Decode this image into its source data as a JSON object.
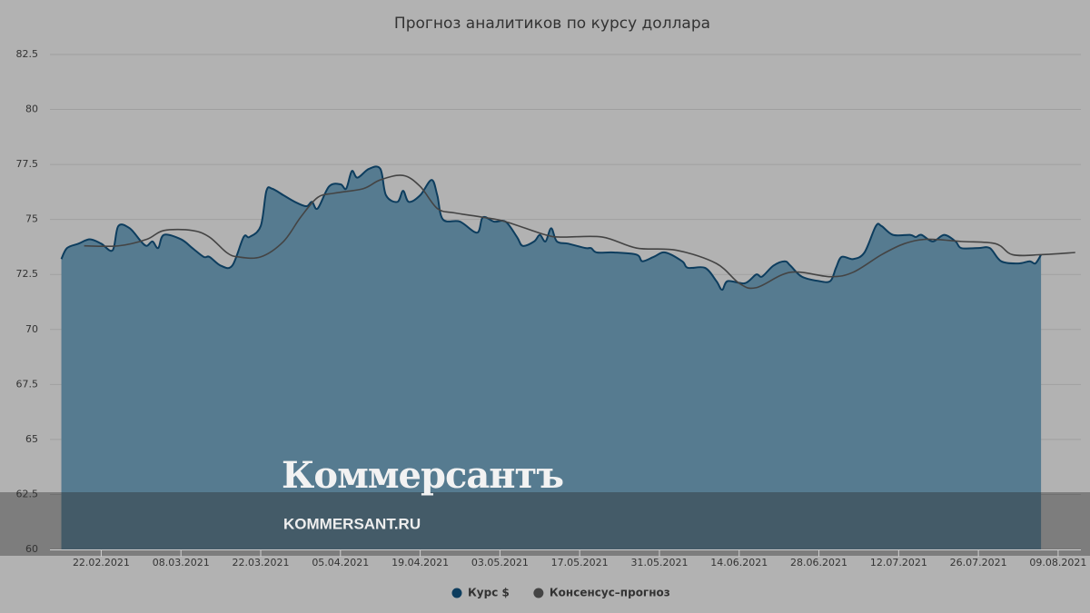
{
  "chart_data": {
    "type": "area-line",
    "title": "Прогноз аналитиков по курсу доллара",
    "xlim": [
      "2021-02-13",
      "2021-08-13"
    ],
    "xticks": [
      {
        "value": "2021-02-22",
        "label": "22.02.2021"
      },
      {
        "value": "2021-03-08",
        "label": "08.03.2021"
      },
      {
        "value": "2021-03-22",
        "label": "22.03.2021"
      },
      {
        "value": "2021-04-05",
        "label": "05.04.2021"
      },
      {
        "value": "2021-04-19",
        "label": "19.04.2021"
      },
      {
        "value": "2021-05-03",
        "label": "03.05.2021"
      },
      {
        "value": "2021-05-17",
        "label": "17.05.2021"
      },
      {
        "value": "2021-05-31",
        "label": "31.05.2021"
      },
      {
        "value": "2021-06-14",
        "label": "14.06.2021"
      },
      {
        "value": "2021-06-28",
        "label": "28.06.2021"
      },
      {
        "value": "2021-07-12",
        "label": "12.07.2021"
      },
      {
        "value": "2021-07-26",
        "label": "26.07.2021"
      },
      {
        "value": "2021-08-09",
        "label": "09.08.2021"
      }
    ],
    "ylim": [
      60,
      82.5
    ],
    "yticks": [
      60,
      62.5,
      65,
      67.5,
      70,
      72.5,
      75,
      77.5,
      80,
      82.5
    ],
    "grid": true,
    "series": [
      {
        "name": "Курс $",
        "kind": "area",
        "color": "#0d3d5e",
        "fill": "#567b90",
        "x": [
          "2021-02-15",
          "2021-02-16",
          "2021-02-18",
          "2021-02-20",
          "2021-02-22",
          "2021-02-24",
          "2021-02-25",
          "2021-02-27",
          "2021-03-01",
          "2021-03-02",
          "2021-03-03",
          "2021-03-04",
          "2021-03-05",
          "2021-03-08",
          "2021-03-10",
          "2021-03-12",
          "2021-03-13",
          "2021-03-15",
          "2021-03-17",
          "2021-03-19",
          "2021-03-20",
          "2021-03-22",
          "2021-03-23",
          "2021-03-24",
          "2021-03-26",
          "2021-03-28",
          "2021-03-30",
          "2021-03-31",
          "2021-04-01",
          "2021-04-03",
          "2021-04-05",
          "2021-04-06",
          "2021-04-07",
          "2021-04-08",
          "2021-04-10",
          "2021-04-12",
          "2021-04-13",
          "2021-04-15",
          "2021-04-16",
          "2021-04-17",
          "2021-04-19",
          "2021-04-21",
          "2021-04-22",
          "2021-04-23",
          "2021-04-26",
          "2021-04-29",
          "2021-04-30",
          "2021-05-02",
          "2021-05-04",
          "2021-05-06",
          "2021-05-07",
          "2021-05-09",
          "2021-05-10",
          "2021-05-11",
          "2021-05-12",
          "2021-05-13",
          "2021-05-15",
          "2021-05-18",
          "2021-05-19",
          "2021-05-20",
          "2021-05-23",
          "2021-05-27",
          "2021-05-28",
          "2021-05-30",
          "2021-06-01",
          "2021-06-04",
          "2021-06-05",
          "2021-06-08",
          "2021-06-10",
          "2021-06-11",
          "2021-06-12",
          "2021-06-15",
          "2021-06-17",
          "2021-06-18",
          "2021-06-20",
          "2021-06-22",
          "2021-06-23",
          "2021-06-25",
          "2021-06-28",
          "2021-06-30",
          "2021-07-01",
          "2021-07-02",
          "2021-07-04",
          "2021-07-06",
          "2021-07-08",
          "2021-07-09",
          "2021-07-11",
          "2021-07-14",
          "2021-07-15",
          "2021-07-16",
          "2021-07-18",
          "2021-07-20",
          "2021-07-22",
          "2021-07-23",
          "2021-07-26",
          "2021-07-28",
          "2021-07-30",
          "2021-08-02",
          "2021-08-04",
          "2021-08-05",
          "2021-08-06"
        ],
        "values": [
          73.2,
          73.7,
          73.9,
          74.1,
          73.9,
          73.6,
          74.7,
          74.6,
          74.0,
          73.8,
          74.0,
          73.7,
          74.3,
          74.1,
          73.7,
          73.3,
          73.3,
          72.9,
          72.9,
          74.2,
          74.2,
          74.7,
          76.3,
          76.4,
          76.1,
          75.8,
          75.6,
          75.8,
          75.5,
          76.5,
          76.6,
          76.4,
          77.2,
          76.9,
          77.3,
          77.3,
          76.1,
          75.8,
          76.3,
          75.8,
          76.1,
          76.8,
          76.1,
          75.0,
          74.9,
          74.4,
          75.1,
          74.9,
          74.9,
          74.2,
          73.8,
          74.0,
          74.3,
          74.0,
          74.6,
          74.0,
          73.9,
          73.7,
          73.7,
          73.5,
          73.5,
          73.4,
          73.1,
          73.3,
          73.5,
          73.1,
          72.8,
          72.8,
          72.2,
          71.8,
          72.2,
          72.1,
          72.5,
          72.4,
          72.9,
          73.1,
          72.9,
          72.4,
          72.2,
          72.2,
          72.8,
          73.3,
          73.2,
          73.5,
          74.7,
          74.7,
          74.3,
          74.3,
          74.2,
          74.3,
          74.0,
          74.3,
          74.0,
          73.7,
          73.7,
          73.7,
          73.1,
          73.0,
          73.1,
          73.0,
          73.4
        ]
      },
      {
        "name": "Консенсус–прогноз",
        "kind": "line",
        "color": "#444444",
        "x": [
          "2021-02-19",
          "2021-02-25",
          "2021-03-02",
          "2021-03-05",
          "2021-03-10",
          "2021-03-13",
          "2021-03-16",
          "2021-03-18",
          "2021-03-22",
          "2021-03-26",
          "2021-03-29",
          "2021-04-01",
          "2021-04-04",
          "2021-04-09",
          "2021-04-12",
          "2021-04-16",
          "2021-04-19",
          "2021-04-22",
          "2021-04-25",
          "2021-04-30",
          "2021-05-04",
          "2021-05-11",
          "2021-05-14",
          "2021-05-21",
          "2021-05-27",
          "2021-06-03",
          "2021-06-10",
          "2021-06-14",
          "2021-06-17",
          "2021-06-23",
          "2021-06-30",
          "2021-07-04",
          "2021-07-09",
          "2021-07-13",
          "2021-07-17",
          "2021-07-23",
          "2021-07-29",
          "2021-08-01",
          "2021-08-06",
          "2021-08-12"
        ],
        "values": [
          73.8,
          73.8,
          74.1,
          74.5,
          74.5,
          74.2,
          73.5,
          73.3,
          73.3,
          74.0,
          75.1,
          76.0,
          76.2,
          76.4,
          76.8,
          77.0,
          76.5,
          75.5,
          75.3,
          75.1,
          74.9,
          74.3,
          74.2,
          74.2,
          73.7,
          73.6,
          73.0,
          72.1,
          71.9,
          72.6,
          72.4,
          72.6,
          73.4,
          73.9,
          74.1,
          74.0,
          73.9,
          73.4,
          73.4,
          73.5
        ]
      }
    ]
  },
  "watermark": {
    "logo": "Коммерсантъ",
    "site": "KOMMERSANT.RU"
  }
}
